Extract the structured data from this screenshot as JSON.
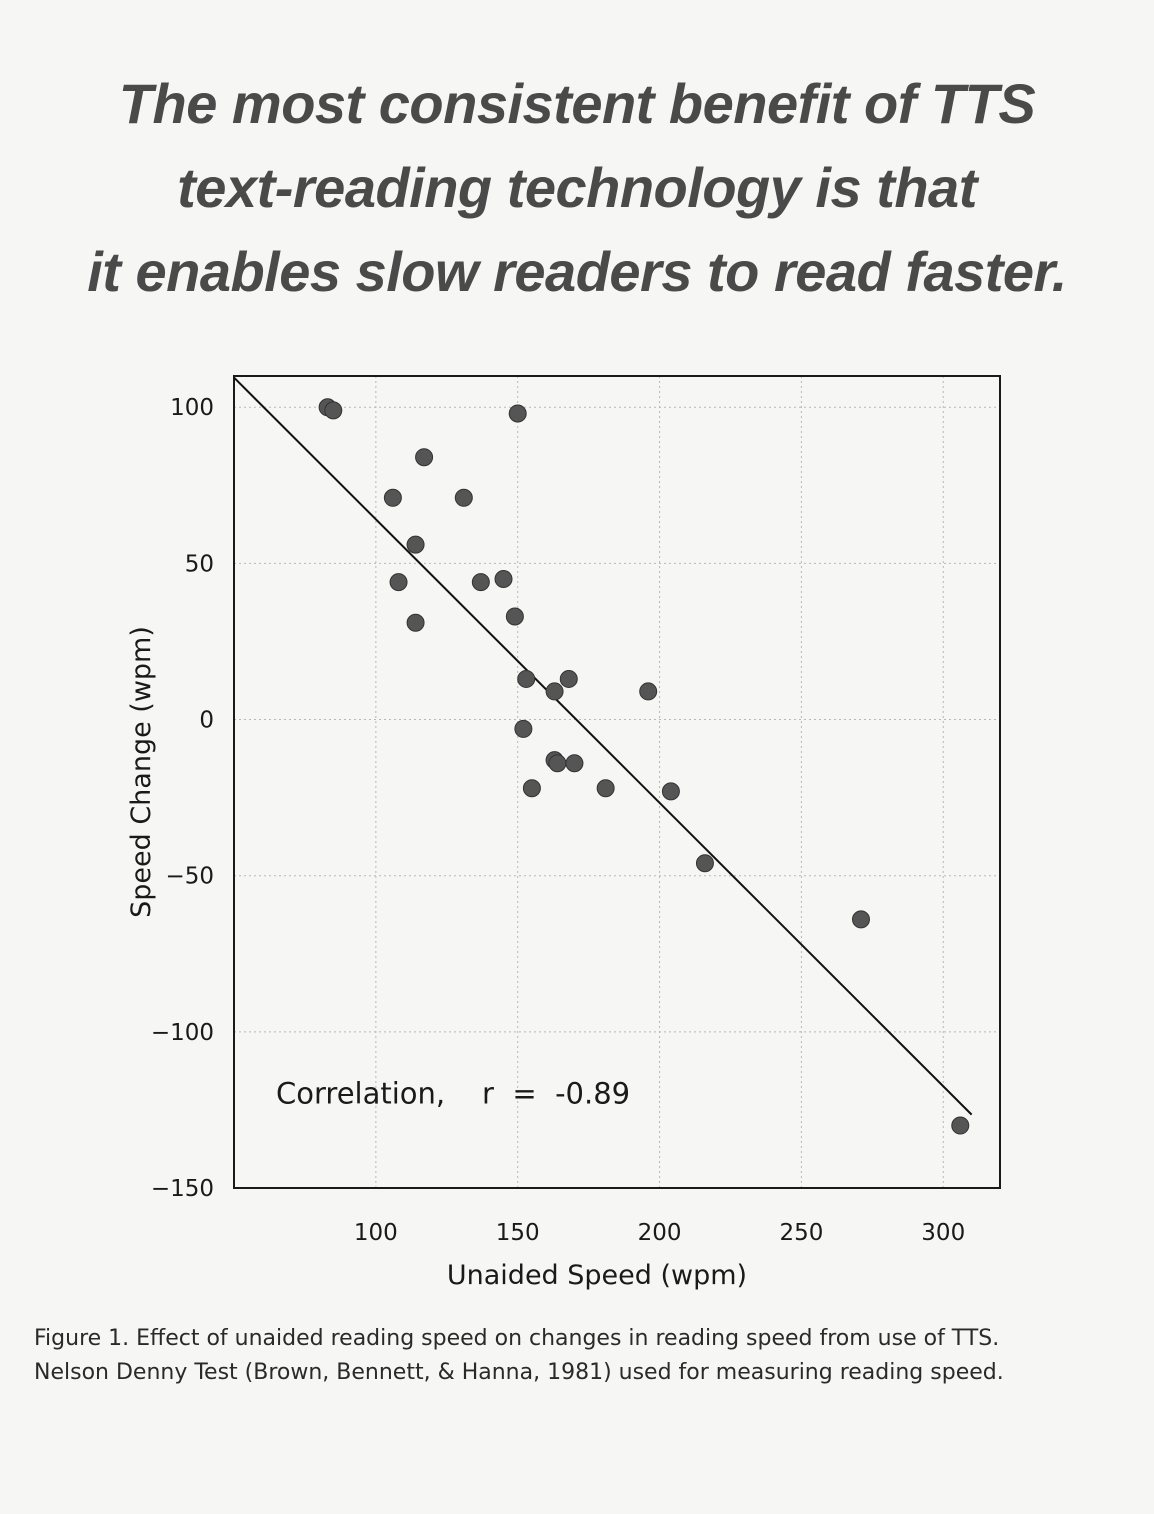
{
  "headline": {
    "line1": "The most consistent benefit of TTS",
    "line2": "text-reading technology is that",
    "line3": "it enables slow readers to read faster."
  },
  "caption": {
    "line1": "Figure 1. Effect of unaided reading speed on changes in reading speed from use of TTS.",
    "line2": "Nelson Denny Test (Brown, Bennett, & Hanna, 1981) used for measuring reading speed."
  },
  "chart_data": {
    "type": "scatter",
    "xlabel": "Unaided Speed (wpm)",
    "ylabel": "Speed Change (wpm)",
    "xlim": [
      50,
      320
    ],
    "ylim": [
      -150,
      110
    ],
    "xticks": [
      100,
      150,
      200,
      250,
      300
    ],
    "yticks": [
      100,
      50,
      0,
      -50,
      -100,
      -150
    ],
    "grid": true,
    "annotation": "Correlation,    r  =  -0.89",
    "trend_line": {
      "x": [
        50,
        310
      ],
      "y": [
        109.5,
        -126.5
      ]
    },
    "points": [
      {
        "x": 83,
        "y": 100
      },
      {
        "x": 85,
        "y": 99
      },
      {
        "x": 150,
        "y": 98
      },
      {
        "x": 117,
        "y": 84
      },
      {
        "x": 106,
        "y": 71
      },
      {
        "x": 131,
        "y": 71
      },
      {
        "x": 114,
        "y": 56
      },
      {
        "x": 108,
        "y": 44
      },
      {
        "x": 137,
        "y": 44
      },
      {
        "x": 145,
        "y": 45
      },
      {
        "x": 149,
        "y": 33
      },
      {
        "x": 114,
        "y": 31
      },
      {
        "x": 153,
        "y": 13
      },
      {
        "x": 168,
        "y": 13
      },
      {
        "x": 163,
        "y": 9
      },
      {
        "x": 196,
        "y": 9
      },
      {
        "x": 152,
        "y": -3
      },
      {
        "x": 163,
        "y": -13
      },
      {
        "x": 164,
        "y": -14
      },
      {
        "x": 170,
        "y": -14
      },
      {
        "x": 155,
        "y": -22
      },
      {
        "x": 181,
        "y": -22
      },
      {
        "x": 204,
        "y": -23
      },
      {
        "x": 216,
        "y": -46
      },
      {
        "x": 271,
        "y": -64
      },
      {
        "x": 306,
        "y": -130
      }
    ],
    "colors": {
      "marker": "#555555",
      "line": "#111111",
      "grid": "#b8b8b8"
    }
  }
}
